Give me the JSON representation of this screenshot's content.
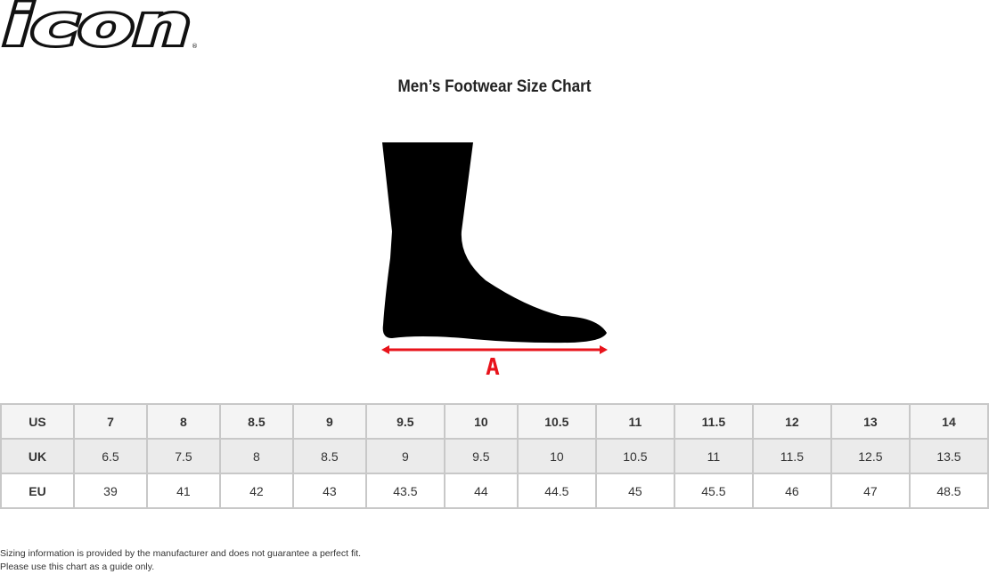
{
  "brand": {
    "logo_text": "icon",
    "registered": "®"
  },
  "title": "Men’s Footwear Size Chart",
  "diagram": {
    "measure_label": "A",
    "arrow_color": "#e8131b"
  },
  "table": {
    "rows": [
      {
        "label": "US",
        "values": [
          "7",
          "8",
          "8.5",
          "9",
          "9.5",
          "10",
          "10.5",
          "11",
          "11.5",
          "12",
          "13",
          "14"
        ]
      },
      {
        "label": "UK",
        "values": [
          "6.5",
          "7.5",
          "8",
          "8.5",
          "9",
          "9.5",
          "10",
          "10.5",
          "11",
          "11.5",
          "12.5",
          "13.5"
        ]
      },
      {
        "label": "EU",
        "values": [
          "39",
          "41",
          "42",
          "43",
          "43.5",
          "44",
          "44.5",
          "45",
          "45.5",
          "46",
          "47",
          "48.5"
        ]
      }
    ]
  },
  "footer": {
    "line1": "Sizing information is provided by the manufacturer and does not guarantee a perfect fit.",
    "line2": "Please use this chart as a guide only."
  }
}
